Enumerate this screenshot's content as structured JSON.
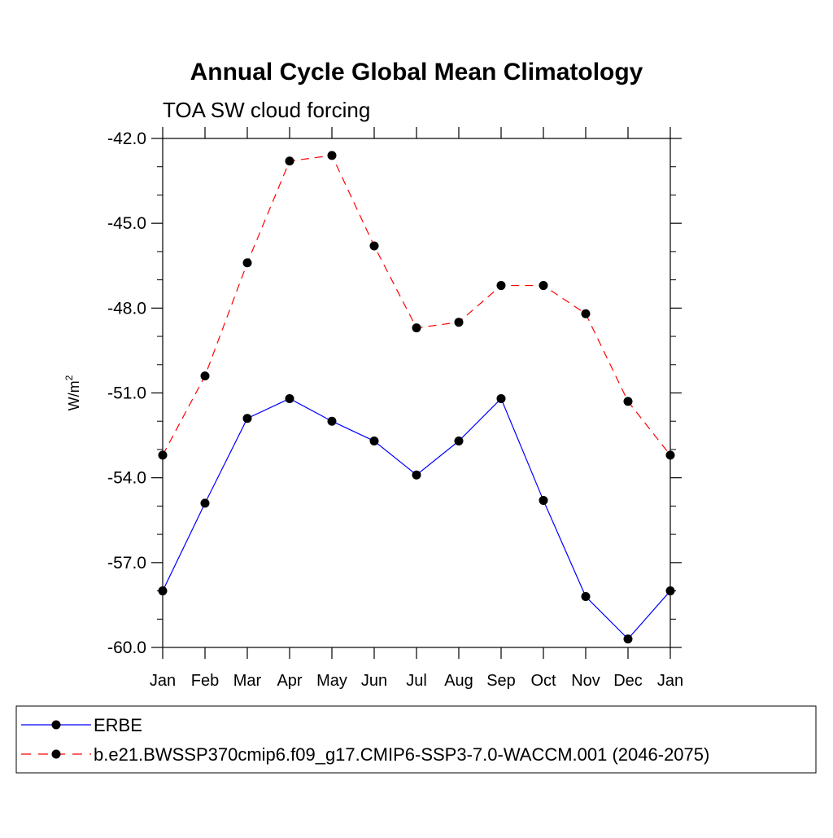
{
  "chart_data": {
    "type": "line",
    "title": "Annual Cycle Global Mean Climatology",
    "subtitle": "TOA SW cloud forcing",
    "ylabel": "W/m",
    "ylabel_superscript": "2",
    "categories": [
      "Jan",
      "Feb",
      "Mar",
      "Apr",
      "May",
      "Jun",
      "Jul",
      "Aug",
      "Sep",
      "Oct",
      "Nov",
      "Dec",
      "Jan"
    ],
    "ylim": [
      -60.0,
      -42.0
    ],
    "yticks": [
      -42.0,
      -45.0,
      -48.0,
      -51.0,
      -54.0,
      -57.0,
      -60.0
    ],
    "ytick_labels": [
      "-42.0",
      "-45.0",
      "-48.0",
      "-51.0",
      "-54.0",
      "-57.0",
      "-60.0"
    ],
    "grid": false,
    "legend_position": "bottom",
    "series": [
      {
        "name": "ERBE",
        "color": "#0000ff",
        "dash": "solid",
        "values": [
          -58.0,
          -54.9,
          -51.9,
          -51.2,
          -52.0,
          -52.7,
          -53.9,
          -52.7,
          -51.2,
          -54.8,
          -58.2,
          -59.7,
          -58.0
        ]
      },
      {
        "name": "b.e21.BWSSP370cmip6.f09_g17.CMIP6-SSP3-7.0-WACCM.001 (2046-2075)",
        "color": "#ff0000",
        "dash": "dashed",
        "values": [
          -53.2,
          -50.4,
          -46.4,
          -42.8,
          -42.6,
          -45.8,
          -48.7,
          -48.5,
          -47.2,
          -47.2,
          -48.2,
          -51.3,
          -53.2
        ]
      }
    ]
  }
}
